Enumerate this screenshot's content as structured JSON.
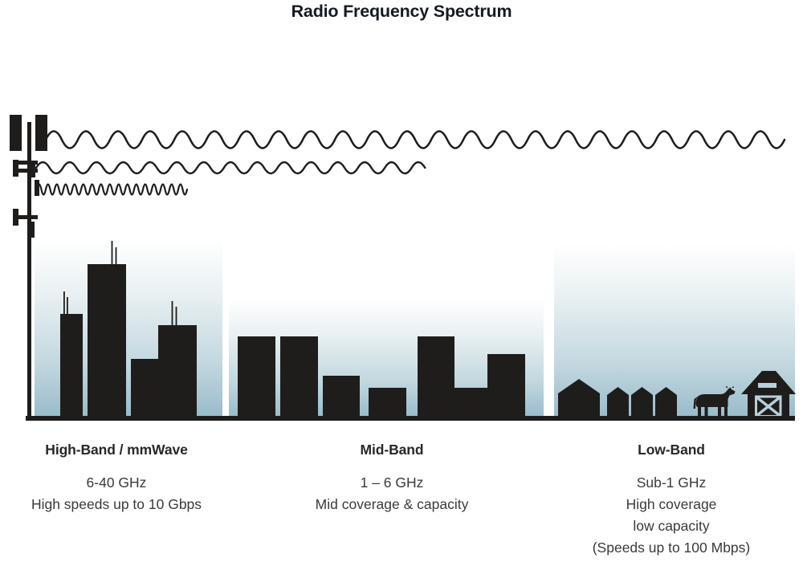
{
  "title": "Radio Frequency Spectrum",
  "bands": [
    {
      "id": "high-band",
      "label": "High-Band / mmWave",
      "lines": [
        "6-40 GHz",
        "High speeds up to 10 Gbps"
      ]
    },
    {
      "id": "mid-band",
      "label": "Mid-Band",
      "lines": [
        "1 – 6 GHz",
        "Mid coverage & capacity"
      ]
    },
    {
      "id": "low-band",
      "label": "Low-Band",
      "lines": [
        "Sub-1 GHz",
        "High coverage",
        "low capacity",
        "(Speeds up to 100 Mbps)"
      ]
    }
  ],
  "colors": {
    "silhouette": "#1f1d1b",
    "sky_top": "#ffffff",
    "sky_mid": "#e9f1f3",
    "sky_low": "#c2d7df",
    "sky_bottom": "#98bbca",
    "title_text": "#151a23",
    "body_text": "#3a3a3a",
    "barn_trim": "#b8d0da"
  },
  "icons": {
    "cell_tower": "cell-tower-icon",
    "long_wave": "long-wavelength-wave",
    "medium_wave": "medium-wavelength-wave",
    "short_wave": "short-wavelength-wave",
    "city": "skyscraper-silhouettes",
    "suburb": "mid-building-silhouettes",
    "rural": "house-silhouettes",
    "cow": "cow-icon",
    "barn": "barn-icon"
  }
}
